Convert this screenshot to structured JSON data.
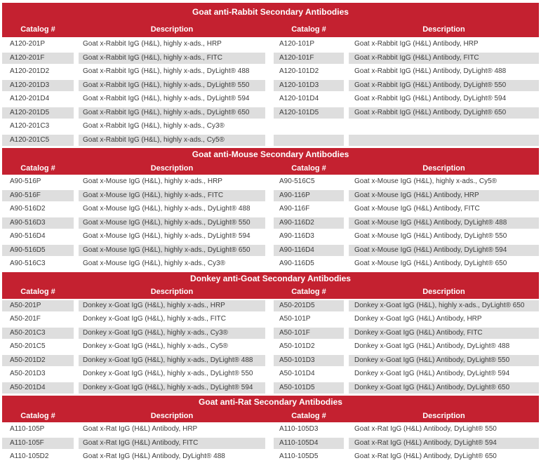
{
  "colors": {
    "accent_red": "#C42130",
    "row_alt_gray": "#DEDEDE",
    "body_text": "#3C3C3C",
    "header_text": "#FFFFFF"
  },
  "sections": [
    {
      "title": "Goat anti-Rabbit Secondary Antibodies",
      "headers": [
        "Catalog #",
        "Description",
        "Catalog #",
        "Description"
      ],
      "first_row_shade": "white",
      "rows": [
        [
          "A120-201P",
          "Goat x-Rabbit IgG (H&L), highly x-ads., HRP",
          "A120-101P",
          "Goat x-Rabbit IgG (H&L) Antibody, HRP"
        ],
        [
          "A120-201F",
          "Goat x-Rabbit IgG (H&L), highly x-ads., FITC",
          "A120-101F",
          "Goat x-Rabbit IgG (H&L) Antibody, FITC"
        ],
        [
          "A120-201D2",
          "Goat x-Rabbit IgG (H&L), highly x-ads., DyLight® 488",
          "A120-101D2",
          "Goat x-Rabbit IgG (H&L) Antibody, DyLight® 488"
        ],
        [
          "A120-201D3",
          "Goat x-Rabbit IgG (H&L), highly x-ads., DyLight® 550",
          "A120-101D3",
          "Goat x-Rabbit IgG (H&L) Antibody, DyLight® 550"
        ],
        [
          "A120-201D4",
          "Goat x-Rabbit IgG (H&L), highly x-ads., DyLight® 594",
          "A120-101D4",
          "Goat x-Rabbit IgG (H&L) Antibody, DyLight® 594"
        ],
        [
          "A120-201D5",
          "Goat x-Rabbit IgG (H&L), highly x-ads., DyLight® 650",
          "A120-101D5",
          "Goat x-Rabbit IgG (H&L) Antibody, DyLight® 650"
        ],
        [
          "A120-201C3",
          "Goat x-Rabbit IgG (H&L), highly x-ads., Cy3®",
          "",
          ""
        ],
        [
          "A120-201C5",
          "Goat x-Rabbit IgG (H&L), highly x-ads., Cy5®",
          "",
          ""
        ]
      ]
    },
    {
      "title": "Goat anti-Mouse Secondary Antibodies",
      "headers": [
        "Catalog #",
        "Description",
        "Catalog #",
        "Description"
      ],
      "first_row_shade": "white",
      "rows": [
        [
          "A90-516P",
          "Goat x-Mouse IgG (H&L), highly x-ads., HRP",
          "A90-516C5",
          "Goat x-Mouse IgG (H&L), highly x-ads., Cy5®"
        ],
        [
          "A90-516F",
          "Goat x-Mouse IgG (H&L), highly x-ads., FITC",
          "A90-116P",
          "Goat x-Mouse IgG (H&L) Antibody, HRP"
        ],
        [
          "A90-516D2",
          "Goat x-Mouse IgG (H&L), highly x-ads., DyLight® 488",
          "A90-116F",
          "Goat x-Mouse IgG (H&L) Antibody, FITC"
        ],
        [
          "A90-516D3",
          "Goat x-Mouse IgG (H&L), highly x-ads., DyLight® 550",
          "A90-116D2",
          "Goat x-Mouse IgG (H&L) Antibody, DyLight® 488"
        ],
        [
          "A90-516D4",
          "Goat x-Mouse IgG (H&L), highly x-ads., DyLight® 594",
          "A90-116D3",
          "Goat x-Mouse IgG (H&L) Antibody, DyLight® 550"
        ],
        [
          "A90-516D5",
          "Goat x-Mouse IgG (H&L), highly x-ads., DyLight® 650",
          "A90-116D4",
          "Goat x-Mouse IgG (H&L) Antibody, DyLight® 594"
        ],
        [
          "A90-516C3",
          "Goat x-Mouse IgG (H&L), highly x-ads., Cy3®",
          "A90-116D5",
          "Goat x-Mouse IgG (H&L) Antibody, DyLight® 650"
        ]
      ]
    },
    {
      "title": "Donkey anti-Goat Secondary Antibodies",
      "headers": [
        "Catalog #",
        "Description",
        "Catalog #",
        "Description"
      ],
      "first_row_shade": "gray",
      "rows": [
        [
          "A50-201P",
          "Donkey x-Goat IgG (H&L), highly x-ads., HRP",
          "A50-201D5",
          "Donkey x-Goat IgG (H&L), highly x-ads., DyLight® 650"
        ],
        [
          "A50-201F",
          "Donkey x-Goat IgG (H&L), highly x-ads., FITC",
          "A50-101P",
          "Donkey x-Goat IgG (H&L) Antibody, HRP"
        ],
        [
          "A50-201C3",
          "Donkey x-Goat IgG (H&L), highly x-ads., Cy3®",
          "A50-101F",
          "Donkey x-Goat IgG (H&L) Antibody, FITC"
        ],
        [
          "A50-201C5",
          "Donkey x-Goat IgG (H&L), highly x-ads., Cy5®",
          "A50-101D2",
          "Donkey x-Goat IgG (H&L) Antibody, DyLight® 488"
        ],
        [
          "A50-201D2",
          "Donkey x-Goat IgG (H&L), highly x-ads., DyLight® 488",
          "A50-101D3",
          "Donkey x-Goat IgG (H&L) Antibody, DyLight® 550"
        ],
        [
          "A50-201D3",
          "Donkey x-Goat IgG (H&L), highly x-ads., DyLight® 550",
          "A50-101D4",
          "Donkey x-Goat IgG (H&L) Antibody, DyLight® 594"
        ],
        [
          "A50-201D4",
          "Donkey x-Goat IgG (H&L), highly x-ads., DyLight® 594",
          "A50-101D5",
          "Donkey x-Goat IgG (H&L) Antibody, DyLight® 650"
        ]
      ]
    },
    {
      "title": "Goat anti-Rat Secondary Antibodies",
      "headers": [
        "Catalog #",
        "Description",
        "Catalog #",
        "Description"
      ],
      "first_row_shade": "white",
      "rows": [
        [
          "A110-105P",
          "Goat x-Rat IgG (H&L) Antibody, HRP",
          "A110-105D3",
          "Goat x-Rat IgG (H&L) Antibody, DyLight® 550"
        ],
        [
          "A110-105F",
          "Goat x-Rat IgG (H&L) Antibody, FITC",
          "A110-105D4",
          "Goat x-Rat IgG (H&L) Antibody, DyLight® 594"
        ],
        [
          "A110-105D2",
          "Goat x-Rat IgG (H&L) Antibody, DyLight® 488",
          "A110-105D5",
          "Goat x-Rat IgG (H&L) Antibody, DyLight® 650"
        ]
      ]
    }
  ]
}
